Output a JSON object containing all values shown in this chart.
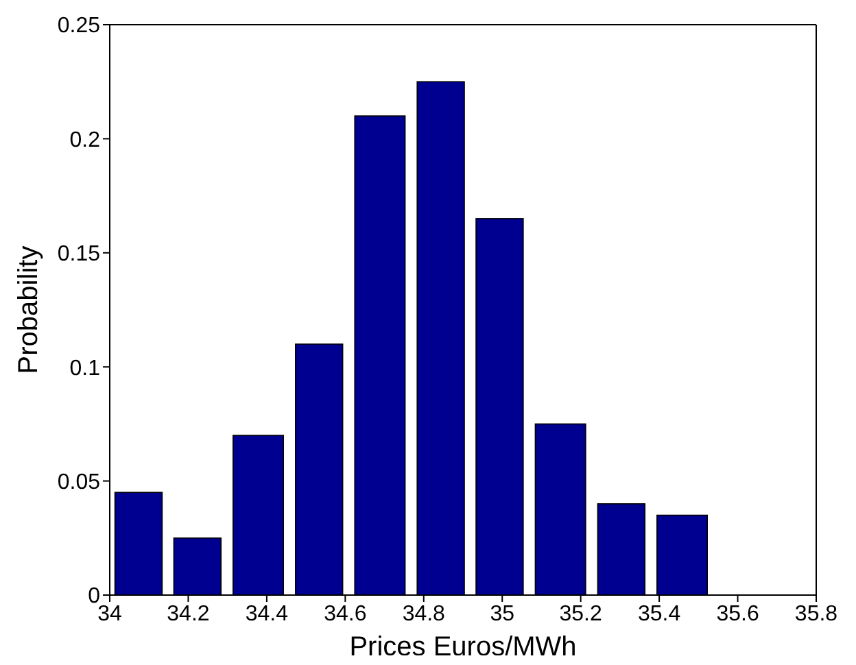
{
  "chart_data": {
    "type": "histogram",
    "xlabel": "Prices Euros/MWh",
    "ylabel": "Probability",
    "bins": [
      34.0,
      34.15,
      34.3,
      34.46,
      34.61,
      34.77,
      34.92,
      35.07,
      35.23,
      35.38,
      35.54
    ],
    "values": [
      0.045,
      0.025,
      0.07,
      0.11,
      0.21,
      0.225,
      0.165,
      0.075,
      0.04,
      0.035
    ],
    "color": "#000090",
    "xlim": [
      34,
      35.8
    ],
    "xticks": [
      34,
      34.2,
      34.4,
      34.6,
      34.8,
      35,
      35.2,
      35.4,
      35.6,
      35.8
    ],
    "ylim": [
      0,
      0.25
    ],
    "yticks": [
      0,
      0.05,
      0.1,
      0.15,
      0.2,
      0.25
    ],
    "grid": false
  }
}
